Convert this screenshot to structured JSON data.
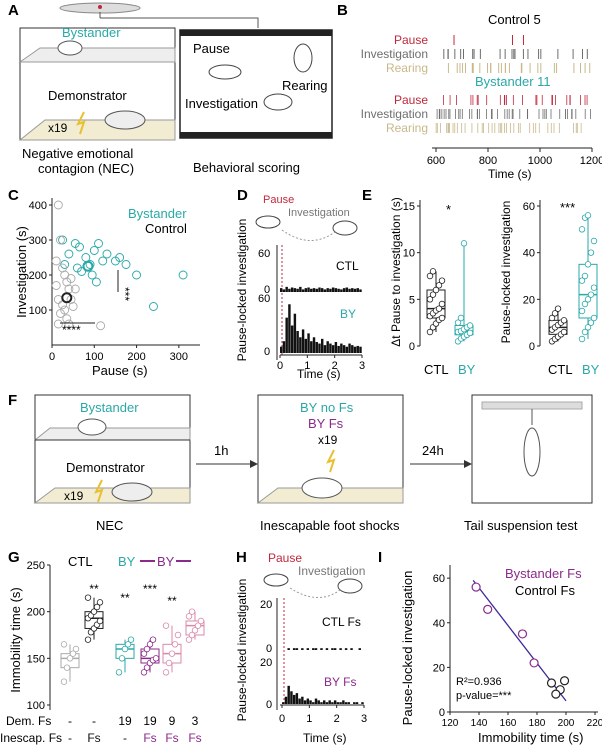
{
  "panels": {
    "A": {
      "letter": "A",
      "bystander": "Bystander",
      "demonstrator": "Demonstrator",
      "x19": "x19",
      "caption_line1": "Negative emotional",
      "caption_line2": "contagion (NEC)",
      "scoring_caption": "Behavioral scoring",
      "pause": "Pause",
      "rearing": "Rearing",
      "investigation": "Investigation"
    },
    "B": {
      "letter": "B",
      "group1": "Control 5",
      "group2": "Bystander 11",
      "rows": [
        "Pause",
        "Investigation",
        "Rearing"
      ],
      "row_colors": [
        "#c0283c",
        "#6e6e6e",
        "#c8b88a"
      ],
      "xticks": [
        "600",
        "800",
        "1000",
        "1200"
      ],
      "xlabel": "Time (s)",
      "xlim": [
        600,
        1200
      ]
    },
    "C": {
      "letter": "C",
      "legend_bystander": "Bystander",
      "legend_control": "Control",
      "sig1": "***",
      "sig2": "****",
      "yticks": [
        "100",
        "200",
        "300",
        "400"
      ],
      "xticks": [
        "0",
        "100",
        "200",
        "300"
      ],
      "ylabel": "Investigation (s)",
      "xlabel": "Pause (s)"
    },
    "D": {
      "letter": "D",
      "pause": "Pause",
      "investigation": "Investigation",
      "ylabel": "Pause-locked investigation",
      "ctl": "CTL",
      "by": "BY",
      "ytick": "60",
      "ytick0": "0",
      "xticks": [
        "0",
        "1",
        "2",
        "3"
      ],
      "xlabel": "Time (s)"
    },
    "E": {
      "letter": "E",
      "sig1": "*",
      "sig2": "***",
      "ylabel1": "Δt Pause to investigation (s)",
      "ylabel2": "Pause-locked investigation",
      "yticks1": [
        "0",
        "5",
        "10",
        "15"
      ],
      "yticks2": [
        "0",
        "20",
        "40",
        "60"
      ],
      "ctl": "CTL",
      "by": "BY"
    },
    "F": {
      "letter": "F",
      "bystander": "Bystander",
      "demonstrator": "Demonstrator",
      "x19": "x19",
      "nec": "NEC",
      "arrow1": "1h",
      "arrow2": "24h",
      "by_no_fs": "BY no Fs",
      "by_fs": "BY Fs",
      "x19b": "x19",
      "caption2": "Inescapable foot shocks",
      "caption3": "Tail suspension test"
    },
    "G": {
      "letter": "G",
      "ctl": "CTL",
      "by": "BY",
      "by2": "BY",
      "ylabel": "Immobility time (s)",
      "yticks": [
        "100",
        "150",
        "200",
        "250"
      ],
      "sig": [
        "**",
        "**",
        "***",
        "**"
      ],
      "dem_label": "Dem. Fs",
      "dem_values": [
        "-",
        "-",
        "19",
        "19",
        "9",
        "3"
      ],
      "inescap_label": "Inescap. Fs",
      "inescap_values": [
        "-",
        "Fs",
        "-",
        "Fs",
        "Fs",
        "Fs"
      ]
    },
    "H": {
      "letter": "H",
      "pause": "Pause",
      "investigation": "Investigation",
      "ylabel": "Pause-locked investigation",
      "ctl": "CTL Fs",
      "by": "BY Fs",
      "ytick": "20",
      "ytick0": "0",
      "xticks": [
        "0",
        "1",
        "2",
        "3"
      ],
      "xlabel": "Time (s)"
    },
    "I": {
      "letter": "I",
      "legend1": "Bystander Fs",
      "legend2": "Control Fs",
      "r2": "R²=0.936",
      "pval": "p-value=***",
      "ylabel": "Pause-locked investigation",
      "xlabel": "Immobility time (s)",
      "yticks": [
        "0",
        "20",
        "40",
        "60"
      ],
      "xticks": [
        "120",
        "140",
        "160",
        "180",
        "200",
        "220"
      ]
    }
  },
  "colors": {
    "teal": "#2aa8a8",
    "magenta": "#8a2a8a",
    "pink": "#d98aa8",
    "red": "#c0283c",
    "gray": "#777777"
  },
  "chart_data": [
    {
      "type": "scatter",
      "title": "C",
      "xlabel": "Pause (s)",
      "ylabel": "Investigation (s)",
      "xlim": [
        0,
        350
      ],
      "ylim": [
        0,
        420
      ],
      "series": [
        {
          "name": "Bystander",
          "points": [
            [
              25,
              300
            ],
            [
              40,
              260
            ],
            [
              55,
              290
            ],
            [
              60,
              220
            ],
            [
              70,
              210
            ],
            [
              80,
              250
            ],
            [
              90,
              230
            ],
            [
              100,
              270
            ],
            [
              110,
              290
            ],
            [
              120,
              240
            ],
            [
              130,
              260
            ],
            [
              160,
              250
            ],
            [
              175,
              230
            ],
            [
              200,
              200
            ],
            [
              240,
              110
            ],
            [
              310,
              200
            ],
            [
              85,
              225
            ],
            [
              65,
              280
            ],
            [
              150,
              240
            ],
            [
              95,
              200
            ],
            [
              105,
              180
            ],
            [
              30,
              230
            ]
          ]
        },
        {
          "name": "Control",
          "points": [
            [
              15,
              400
            ],
            [
              20,
              300
            ],
            [
              10,
              240
            ],
            [
              25,
              220
            ],
            [
              30,
              200
            ],
            [
              35,
              180
            ],
            [
              40,
              160
            ],
            [
              15,
              130
            ],
            [
              25,
              115
            ],
            [
              30,
              100
            ],
            [
              20,
              90
            ],
            [
              35,
              75
            ],
            [
              40,
              60
            ],
            [
              45,
              130
            ],
            [
              50,
              110
            ],
            [
              15,
              60
            ],
            [
              10,
              170
            ],
            [
              45,
              190
            ],
            [
              55,
              160
            ],
            [
              115,
              55
            ]
          ]
        }
      ]
    },
    {
      "type": "bar",
      "title": "D",
      "xlabel": "Time (s)",
      "ylabel": "Pause-locked investigation",
      "xlim": [
        0,
        3
      ],
      "ylim": [
        0,
        70
      ],
      "series": [
        {
          "name": "CTL",
          "values": [
            6,
            4,
            8,
            5,
            7,
            6,
            5,
            8,
            4,
            6,
            7,
            5,
            6,
            5,
            7,
            6,
            4,
            6,
            5,
            7,
            6,
            5,
            4,
            6,
            7,
            5,
            6,
            5,
            6,
            4
          ]
        },
        {
          "name": "BY",
          "values": [
            8,
            15,
            45,
            62,
            35,
            50,
            28,
            20,
            30,
            18,
            25,
            15,
            20,
            14,
            12,
            18,
            10,
            15,
            12,
            10,
            14,
            9,
            12,
            10,
            8,
            12,
            10,
            8,
            9,
            8
          ]
        }
      ]
    },
    {
      "type": "box",
      "title": "E-left",
      "ylabel": "Δt Pause to investigation (s)",
      "ylim": [
        0,
        15
      ],
      "series": [
        {
          "name": "CTL",
          "values": [
            1.5,
            2.0,
            2.4,
            2.8,
            3.0,
            3.2,
            3.5,
            3.8,
            4.0,
            4.5,
            5.0,
            5.5,
            6.0,
            6.5,
            7.0,
            7.5,
            8.0
          ]
        },
        {
          "name": "BY",
          "values": [
            0.5,
            0.8,
            1.0,
            1.2,
            1.4,
            1.5,
            1.6,
            1.8,
            2.0,
            2.2,
            2.5,
            3.0,
            11.0
          ]
        }
      ]
    },
    {
      "type": "box",
      "title": "E-right",
      "ylabel": "Pause-locked investigation",
      "ylim": [
        0,
        60
      ],
      "series": [
        {
          "name": "CTL",
          "values": [
            2,
            3,
            4,
            5,
            6,
            7,
            8,
            9,
            10,
            11,
            12,
            14,
            16
          ]
        },
        {
          "name": "BY",
          "values": [
            3,
            6,
            8,
            10,
            12,
            15,
            18,
            20,
            22,
            25,
            28,
            30,
            35,
            40,
            45,
            50,
            55,
            56
          ]
        }
      ]
    },
    {
      "type": "box",
      "title": "G",
      "ylabel": "Immobility time (s)",
      "ylim": [
        100,
        250
      ],
      "categories": [
        "CTL -/-",
        "CTL -/Fs",
        "BY 19/-",
        "BY 19/Fs",
        "BY 9/Fs",
        "BY 3/Fs"
      ],
      "series": [
        {
          "name": "CTL -/-",
          "values": [
            125,
            140,
            150,
            155,
            160,
            165
          ]
        },
        {
          "name": "CTL -/Fs",
          "values": [
            170,
            178,
            182,
            186,
            190,
            193,
            196,
            200,
            205,
            210,
            215
          ]
        },
        {
          "name": "BY 19/-",
          "values": [
            135,
            150,
            160,
            165,
            170
          ]
        },
        {
          "name": "BY 19/Fs",
          "values": [
            135,
            140,
            145,
            148,
            150,
            155,
            160,
            165,
            170
          ]
        },
        {
          "name": "BY 9/Fs",
          "values": [
            135,
            145,
            155,
            165,
            175,
            185
          ]
        },
        {
          "name": "BY 3/Fs",
          "values": [
            170,
            175,
            180,
            185,
            190,
            195,
            200
          ]
        }
      ]
    },
    {
      "type": "bar",
      "title": "H",
      "xlabel": "Time (s)",
      "ylabel": "Pause-locked investigation",
      "xlim": [
        0,
        3
      ],
      "ylim": [
        0,
        22
      ],
      "series": [
        {
          "name": "CTL Fs",
          "values": [
            0,
            0,
            1,
            0,
            1,
            1,
            0,
            1,
            0,
            1,
            0,
            1,
            1,
            0,
            1,
            0,
            1,
            0,
            1,
            1,
            0,
            1,
            0,
            1,
            0,
            1,
            0,
            0,
            1,
            0
          ]
        },
        {
          "name": "BY Fs",
          "values": [
            1,
            4,
            10,
            7,
            5,
            6,
            3,
            4,
            2,
            3,
            2,
            1,
            3,
            2,
            1,
            2,
            1,
            2,
            1,
            2,
            1,
            1,
            2,
            1,
            1,
            0,
            1,
            1,
            0,
            1
          ]
        }
      ]
    },
    {
      "type": "scatter",
      "title": "I",
      "xlabel": "Immobility time (s)",
      "ylabel": "Pause-locked investigation",
      "xlim": [
        120,
        220
      ],
      "ylim": [
        0,
        65
      ],
      "series": [
        {
          "name": "Bystander Fs",
          "points": [
            [
              138,
              56
            ],
            [
              146,
              46
            ],
            [
              170,
              35
            ],
            [
              178,
              22
            ]
          ]
        },
        {
          "name": "Control Fs",
          "points": [
            [
              190,
              13
            ],
            [
              196,
              10
            ],
            [
              193,
              8
            ],
            [
              199,
              14
            ]
          ]
        }
      ],
      "fit_line": [
        [
          136,
          59
        ],
        [
          200,
          5
        ]
      ]
    }
  ]
}
